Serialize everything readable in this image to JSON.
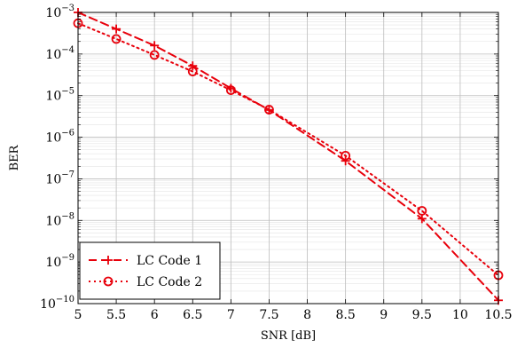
{
  "chart_data": {
    "type": "line",
    "xlabel": "SNR [dB]",
    "ylabel": "BER",
    "xlim": [
      5,
      10.5
    ],
    "ylim": [
      1e-10,
      0.001
    ],
    "yscale": "log",
    "x_ticks": [
      "5",
      "5.5",
      "6",
      "6.5",
      "7",
      "7.5",
      "8",
      "8.5",
      "9",
      "9.5",
      "10",
      "10.5"
    ],
    "y_ticks": [
      {
        "base": "10",
        "exp": "−10",
        "value": 1e-10
      },
      {
        "base": "10",
        "exp": "−9",
        "value": 1e-09
      },
      {
        "base": "10",
        "exp": "−8",
        "value": 1e-08
      },
      {
        "base": "10",
        "exp": "−7",
        "value": 1e-07
      },
      {
        "base": "10",
        "exp": "−6",
        "value": 1e-06
      },
      {
        "base": "10",
        "exp": "−5",
        "value": 1e-05
      },
      {
        "base": "10",
        "exp": "−4",
        "value": 0.0001
      },
      {
        "base": "10",
        "exp": "−3",
        "value": 0.001
      }
    ],
    "grid": true,
    "legend_position": "bottom-left",
    "series": [
      {
        "name": "LC Code 1",
        "color": "#e8000b",
        "line_style": "dashed",
        "marker": "plus",
        "x": [
          5,
          5.5,
          6,
          6.5,
          7,
          7.5,
          8.5,
          9.5,
          10.5
        ],
        "y": [
          0.001,
          0.0004,
          0.00016,
          5.2e-05,
          1.5e-05,
          4.5e-06,
          2.7e-07,
          1.1e-08,
          1.2e-10
        ]
      },
      {
        "name": "LC Code 2",
        "color": "#e8000b",
        "line_style": "dotted",
        "marker": "circle",
        "x": [
          5,
          5.5,
          6,
          6.5,
          7,
          7.5,
          8.5,
          9.5,
          10.5
        ],
        "y": [
          0.00055,
          0.00023,
          9.5e-05,
          3.8e-05,
          1.35e-05,
          4.6e-06,
          3.6e-07,
          1.7e-08,
          4.8e-10
        ]
      }
    ]
  }
}
